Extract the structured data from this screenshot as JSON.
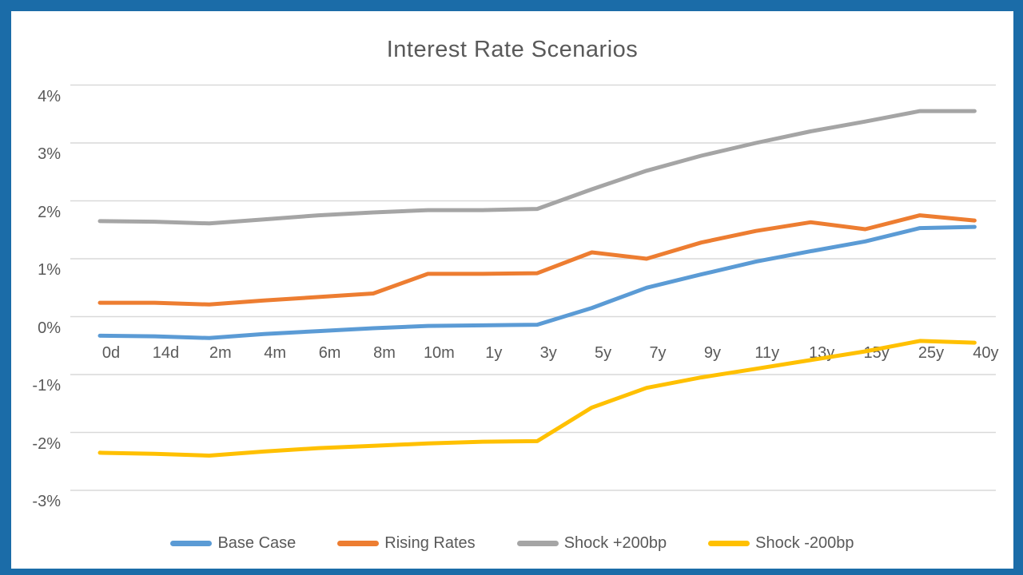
{
  "chart_data": {
    "type": "line",
    "title": "Interest Rate Scenarios",
    "xlabel": "",
    "ylabel": "",
    "categories": [
      "0d",
      "14d",
      "2m",
      "4m",
      "6m",
      "8m",
      "10m",
      "1y",
      "3y",
      "5y",
      "7y",
      "9y",
      "11y",
      "13y",
      "15y",
      "25y",
      "40y"
    ],
    "series": [
      {
        "name": "Base Case",
        "color": "#5B9BD5",
        "values": [
          -0.33,
          -0.34,
          -0.37,
          -0.3,
          -0.25,
          -0.2,
          -0.16,
          -0.15,
          -0.14,
          0.15,
          0.5,
          0.73,
          0.95,
          1.13,
          1.3,
          1.53,
          1.55
        ]
      },
      {
        "name": "Rising Rates",
        "color": "#ED7D31",
        "values": [
          0.24,
          0.24,
          0.21,
          0.28,
          0.34,
          0.4,
          0.74,
          0.74,
          0.75,
          1.11,
          1.0,
          1.28,
          1.48,
          1.63,
          1.51,
          1.75,
          1.66
        ]
      },
      {
        "name": "Shock +200bp",
        "color": "#A5A5A5",
        "values": [
          1.65,
          1.64,
          1.61,
          1.68,
          1.75,
          1.8,
          1.84,
          1.84,
          1.86,
          2.2,
          2.52,
          2.78,
          3.0,
          3.2,
          3.37,
          3.55,
          3.55
        ]
      },
      {
        "name": "Shock -200bp",
        "color": "#FFC000",
        "values": [
          -2.35,
          -2.37,
          -2.4,
          -2.33,
          -2.27,
          -2.23,
          -2.19,
          -2.16,
          -2.15,
          -1.57,
          -1.23,
          -1.05,
          -0.9,
          -0.75,
          -0.6,
          -0.42,
          -0.45
        ]
      }
    ],
    "y_ticks": [
      "4%",
      "3%",
      "2%",
      "1%",
      "0%",
      "-1%",
      "-2%",
      "-3%"
    ],
    "y_tick_values": [
      4,
      3,
      2,
      1,
      0,
      -1,
      -2,
      -3
    ],
    "ylim": [
      -3,
      4
    ],
    "grid": true,
    "legend_position": "bottom"
  },
  "colors": {
    "frame": "#1B6CA8",
    "gridline": "#D9D9D9",
    "text": "#595959",
    "background": "#FFFFFF"
  }
}
